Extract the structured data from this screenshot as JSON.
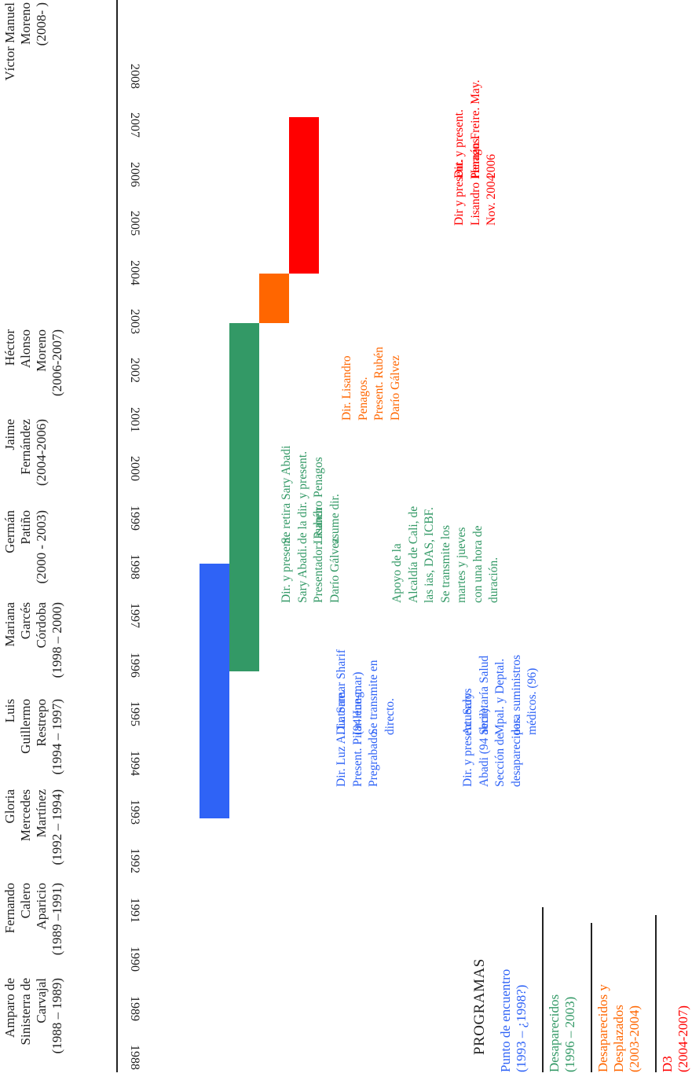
{
  "colors": {
    "blue": "#2f63f6",
    "green": "#339966",
    "orange": "#ff6600",
    "red": "#ff0000",
    "text": "#222222"
  },
  "mayors": [
    [
      "Amparo de",
      "Sinisterra de",
      "Carvajal",
      "(1988 – 1989)"
    ],
    [
      "Fernando",
      "Calero",
      "Aparicio",
      "(1989 –1991)"
    ],
    [
      "Gloria",
      "Mercedes",
      "Martínez",
      "(1992 – 1994)"
    ],
    [
      "Luis",
      "Guillermo",
      "Restrepo",
      "(1994 – 1997)"
    ],
    [
      "Mariana",
      "Garcés",
      "Córdoba",
      "(1998 – 2000)"
    ],
    [
      "Germán",
      "Patiño",
      "(2000 - 2003)"
    ],
    [
      "Jaime",
      "Fernández",
      "(2004-2006)"
    ],
    [
      "Héctor",
      "Alonso",
      "Moreno",
      "(2006-2007)"
    ],
    [
      "Víctor Manuel",
      "Moreno",
      "(2008- )"
    ]
  ],
  "years": [
    "1988",
    "1989",
    "1990",
    "1991",
    "1992",
    "1993",
    "1994",
    "1995",
    "1996",
    "1997",
    "1998",
    "1999",
    "2000",
    "2001",
    "2002",
    "2003",
    "2004",
    "2005",
    "2006",
    "2007",
    "2008"
  ],
  "programs_title": "PROGRAMAS",
  "programs": [
    {
      "lines": [
        "Punto de encuentro",
        "(1993 – ¿1998?)"
      ],
      "color": "#2f63f6"
    },
    {
      "lines": [
        "Desaparecidos",
        "(1996 – 2003)"
      ],
      "color": "#339966"
    },
    {
      "lines": [
        "Desaparecidos y",
        "Desplazados",
        "(2003-2004)"
      ],
      "color": "#ff6600"
    },
    {
      "lines": [
        "D3",
        "(2004-2007)"
      ],
      "color": "#ff0000"
    }
  ],
  "bars": [
    {
      "program": "Punto de encuentro",
      "start": 1993,
      "end": 1998.2
    },
    {
      "program": "Desaparecidos",
      "start": 1996,
      "end": 2003.1
    },
    {
      "program": "Desaparecidos y Desplazados",
      "start": 2003.1,
      "end": 2004.1
    },
    {
      "program": "D3",
      "start": 2004.1,
      "end": 2007.3
    }
  ],
  "notes": {
    "blue": [
      [
        "Dir. Luz A. Latorre.",
        "Present. Pilar Hung.",
        "Pregrabado."
      ],
      [
        "Dir. Samar Sharif",
        "(94 ene-mar)",
        "Se transmite en",
        "directo."
      ],
      [
        "Dir. y present. Sary",
        "Abadi (94 abril).",
        "Sección de",
        "desaparecidos."
      ],
      [
        "Acuerdos",
        "Secretaría Salud",
        "Mpal. y Deptal.",
        "para suministros",
        "médicos. (96)"
      ]
    ],
    "green": [
      [
        "Dir. y present.",
        "Sary Abadi.",
        "Presentador: Rubén",
        "Darío Gálvez"
      ],
      [
        "Se retira Sary Abadi",
        "de la dir. y present.",
        "Lisandro Penagos",
        "asume dir."
      ],
      [
        "Apoyo de la",
        "Alcaldía de Cali, de",
        "las ias, DAS, ICBF.",
        "Se transmite los",
        "martes y jueves",
        "con una hora de",
        "duración."
      ]
    ],
    "orange": [
      [
        "Dir. Lisandro",
        "Penagos.",
        "Present. Rubén",
        "Darío Gálvez"
      ]
    ],
    "red": [
      [
        "Dir y present.",
        "Lisandro Penagos.",
        "Nov. 2004"
      ],
      [
        "Dir. y present.",
        "Hernán Freire. May.",
        "2006"
      ]
    ]
  }
}
